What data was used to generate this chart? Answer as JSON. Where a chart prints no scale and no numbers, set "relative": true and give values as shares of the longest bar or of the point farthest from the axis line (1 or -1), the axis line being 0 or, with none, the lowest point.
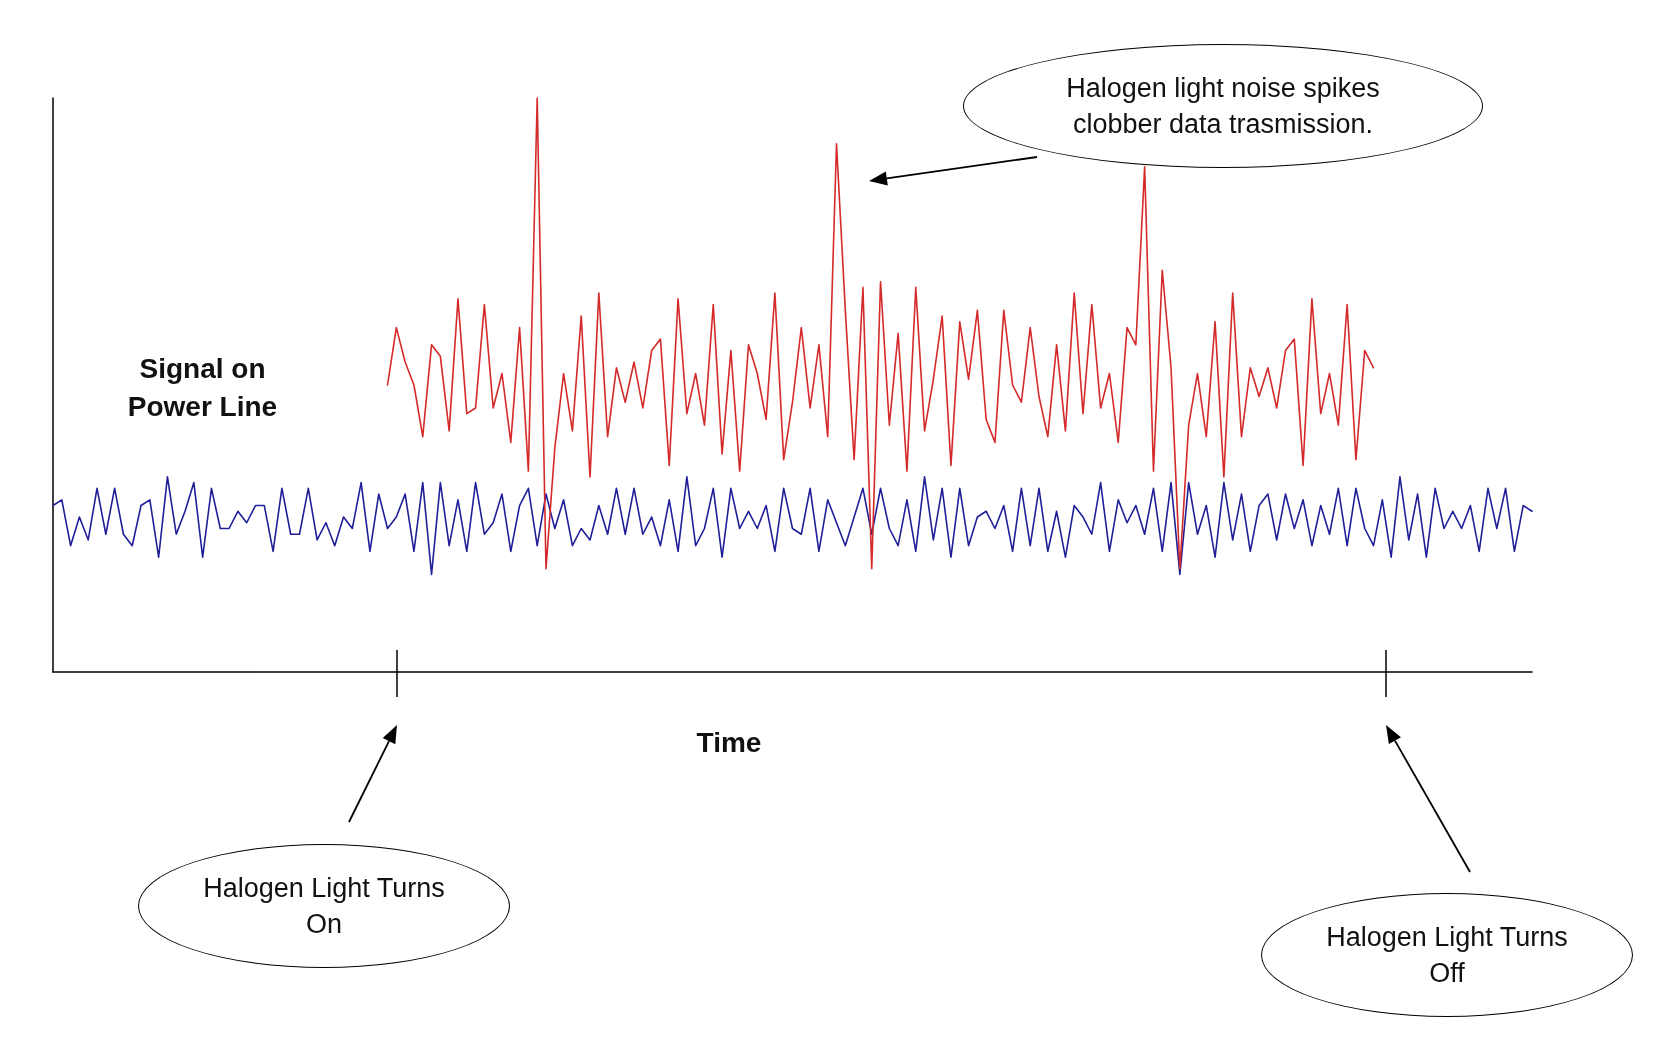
{
  "chart_data": {
    "type": "line",
    "relative": true,
    "ylabel": "Signal on Power Line",
    "xlabel": "Time",
    "marker": "none",
    "line_style": "solid",
    "annotations": [
      "Halogen light noise spikes clobber data trasmission.",
      "Halogen Light Turns On",
      "Halogen Light Turns Off"
    ],
    "categories": [
      null,
      null,
      null,
      null,
      null,
      null,
      null,
      null,
      null,
      null,
      null,
      null,
      null,
      null,
      null,
      null,
      null,
      null,
      null,
      null,
      null,
      null,
      null,
      null,
      null,
      null,
      null,
      null,
      null,
      null,
      null,
      null,
      null,
      null,
      null,
      null,
      null,
      null,
      null,
      null,
      null,
      null,
      null,
      null,
      null,
      null,
      null,
      null,
      null,
      null,
      null,
      null,
      null,
      null,
      null,
      null,
      null,
      null,
      null,
      null,
      null,
      null,
      null,
      null,
      null,
      null,
      null,
      null,
      null,
      null,
      null,
      null,
      null,
      null,
      null,
      null,
      null,
      null,
      null,
      null,
      null,
      null,
      null,
      null,
      null,
      null,
      null,
      null,
      null,
      null,
      null,
      null,
      null,
      null,
      null,
      null,
      null,
      null,
      null,
      null,
      null,
      null,
      null,
      null,
      null,
      null,
      null,
      null,
      null,
      null,
      null,
      null,
      null,
      null,
      null,
      null,
      null,
      null,
      null,
      null,
      null,
      null,
      null,
      null,
      null,
      null,
      null,
      null,
      null,
      null,
      null,
      null,
      null,
      null,
      null,
      null,
      null,
      null,
      null,
      null,
      null,
      null,
      null,
      null,
      null,
      null,
      null,
      null,
      null,
      null,
      null,
      null,
      null,
      null,
      null,
      null,
      null,
      null,
      null,
      null,
      null,
      null,
      null,
      null,
      null,
      null,
      null,
      null,
      null
    ],
    "series": [
      {
        "color": "#d42a2a",
        "values": [
          null,
          null,
          null,
          null,
          null,
          null,
          null,
          null,
          null,
          null,
          null,
          null,
          null,
          null,
          null,
          null,
          null,
          null,
          null,
          null,
          null,
          null,
          null,
          null,
          null,
          null,
          null,
          null,
          null,
          null,
          null,
          null,
          null,
          null,
          null,
          null,
          null,
          null,
          0.5,
          0.6,
          0.54,
          0.5,
          0.41,
          0.57,
          0.55,
          0.42,
          0.65,
          0.45,
          0.46,
          0.64,
          0.46,
          0.52,
          0.4,
          0.6,
          0.35,
          1.0,
          0.18,
          0.39,
          0.52,
          0.42,
          0.62,
          0.34,
          0.66,
          0.41,
          0.53,
          0.47,
          0.54,
          0.46,
          0.56,
          0.58,
          0.36,
          0.65,
          0.45,
          0.52,
          0.43,
          0.64,
          0.38,
          0.56,
          0.35,
          0.57,
          0.52,
          0.44,
          0.66,
          0.37,
          0.47,
          0.6,
          0.46,
          0.57,
          0.41,
          0.92,
          0.63,
          0.37,
          0.67,
          0.18,
          0.68,
          0.43,
          0.59,
          0.35,
          0.67,
          0.42,
          0.51,
          0.62,
          0.36,
          0.61,
          0.51,
          0.63,
          0.44,
          0.4,
          0.63,
          0.5,
          0.47,
          0.6,
          0.48,
          0.41,
          0.57,
          0.42,
          0.66,
          0.45,
          0.64,
          0.46,
          0.52,
          0.4,
          0.6,
          0.57,
          0.88,
          0.35,
          0.7,
          0.53,
          0.18,
          0.43,
          0.52,
          0.41,
          0.61,
          0.34,
          0.66,
          0.41,
          0.53,
          0.48,
          0.53,
          0.46,
          0.56,
          0.58,
          0.36,
          0.65,
          0.45,
          0.52,
          0.43,
          0.64,
          0.37,
          0.56,
          0.53,
          null,
          null,
          null,
          null,
          null,
          null,
          null,
          null,
          null,
          null,
          null,
          null,
          null,
          null,
          null,
          null,
          null,
          null
        ]
      },
      {
        "color": "#1f1f99",
        "values": [
          0.29,
          0.3,
          0.22,
          0.27,
          0.23,
          0.32,
          0.24,
          0.32,
          0.24,
          0.22,
          0.29,
          0.3,
          0.2,
          0.34,
          0.24,
          0.28,
          0.33,
          0.2,
          0.32,
          0.25,
          0.25,
          0.28,
          0.26,
          0.29,
          0.29,
          0.21,
          0.32,
          0.24,
          0.24,
          0.32,
          0.23,
          0.26,
          0.22,
          0.27,
          0.25,
          0.33,
          0.21,
          0.31,
          0.25,
          0.27,
          0.31,
          0.21,
          0.33,
          0.17,
          0.33,
          0.22,
          0.3,
          0.21,
          0.33,
          0.24,
          0.26,
          0.31,
          0.21,
          0.29,
          0.32,
          0.22,
          0.31,
          0.25,
          0.3,
          0.22,
          0.25,
          0.23,
          0.29,
          0.24,
          0.32,
          0.24,
          0.32,
          0.24,
          0.27,
          0.22,
          0.3,
          0.21,
          0.34,
          0.22,
          0.25,
          0.32,
          0.2,
          0.32,
          0.25,
          0.28,
          0.25,
          0.29,
          0.21,
          0.32,
          0.25,
          0.24,
          0.32,
          0.21,
          0.3,
          0.26,
          0.22,
          0.27,
          0.32,
          0.24,
          0.32,
          0.25,
          0.22,
          0.3,
          0.21,
          0.34,
          0.23,
          0.32,
          0.2,
          0.32,
          0.22,
          0.27,
          0.28,
          0.25,
          0.29,
          0.21,
          0.32,
          0.22,
          0.32,
          0.21,
          0.28,
          0.2,
          0.29,
          0.27,
          0.24,
          0.33,
          0.21,
          0.3,
          0.26,
          0.29,
          0.24,
          0.32,
          0.21,
          0.33,
          0.17,
          0.33,
          0.24,
          0.29,
          0.2,
          0.33,
          0.23,
          0.31,
          0.21,
          0.29,
          0.31,
          0.23,
          0.31,
          0.25,
          0.3,
          0.22,
          0.29,
          0.24,
          0.32,
          0.22,
          0.32,
          0.25,
          0.22,
          0.3,
          0.2,
          0.34,
          0.23,
          0.31,
          0.2,
          0.32,
          0.25,
          0.28,
          0.25,
          0.29,
          0.21,
          0.32,
          0.25,
          0.32,
          0.21,
          0.29,
          0.28
        ]
      }
    ]
  }
}
